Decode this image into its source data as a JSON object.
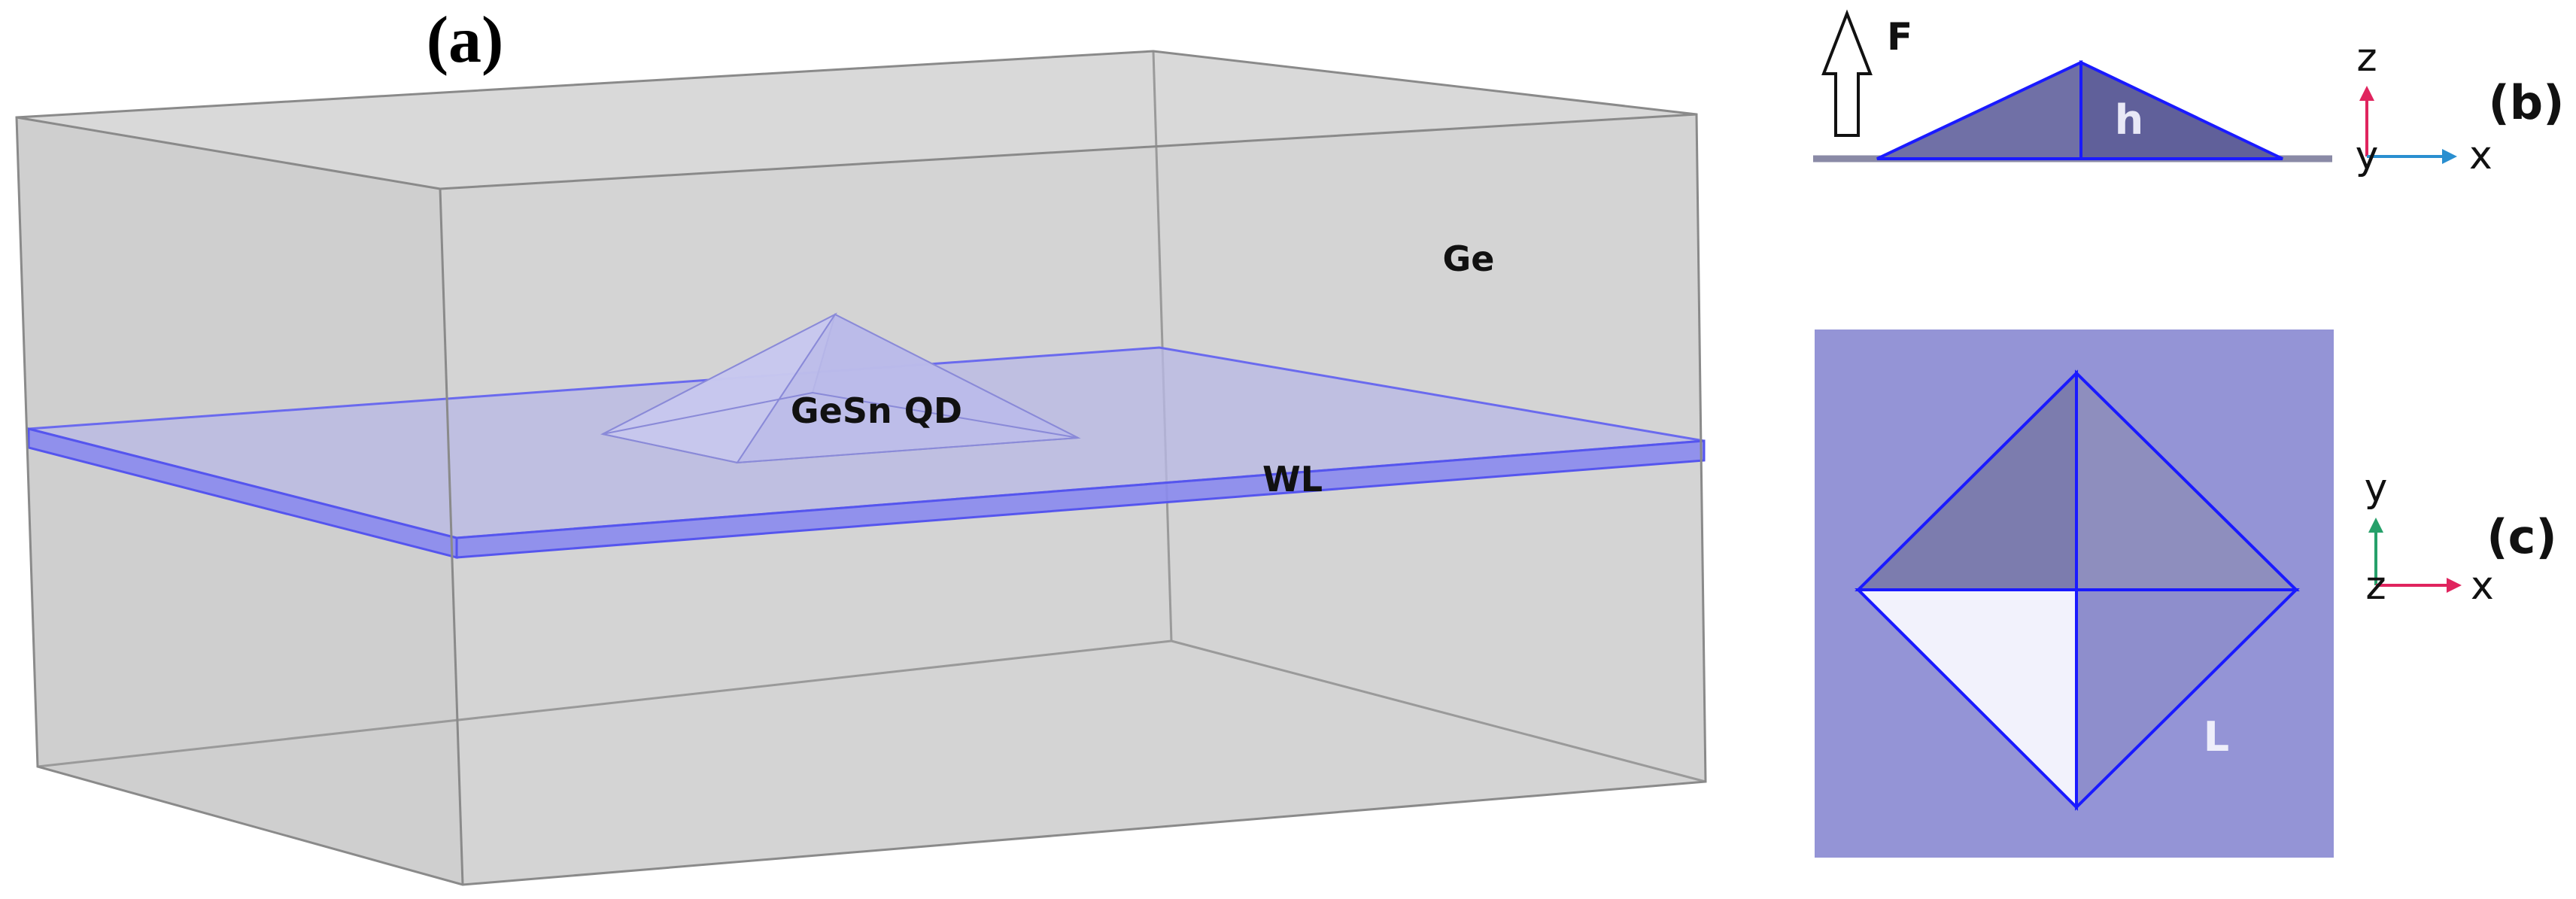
{
  "panel_a": {
    "label": "(a)",
    "matrix_label": "Ge",
    "dot_label": "GeSn QD",
    "wetting_layer_label": "WL"
  },
  "panel_b": {
    "label": "(b)",
    "force_label": "F",
    "height_label": "h",
    "axes": {
      "up": "z",
      "origin": "y",
      "right": "x"
    }
  },
  "panel_c": {
    "label": "(c)",
    "base_label": "L",
    "axes": {
      "up": "y",
      "origin": "z",
      "right": "x"
    }
  },
  "colors": {
    "box_fill": "#d3d3d3",
    "box_edge": "#8a8a8a",
    "wl_fill": "#b8b8e6",
    "wl_edge": "#5555ee",
    "pyramid_fill": "#c2c2ea",
    "panel_c_bg": "#9494d6",
    "pyramid_outline": "#1a1aff",
    "axis_z": "#e0245e",
    "axis_x": "#2a8fd0",
    "axis_y_green": "#26a06a"
  }
}
